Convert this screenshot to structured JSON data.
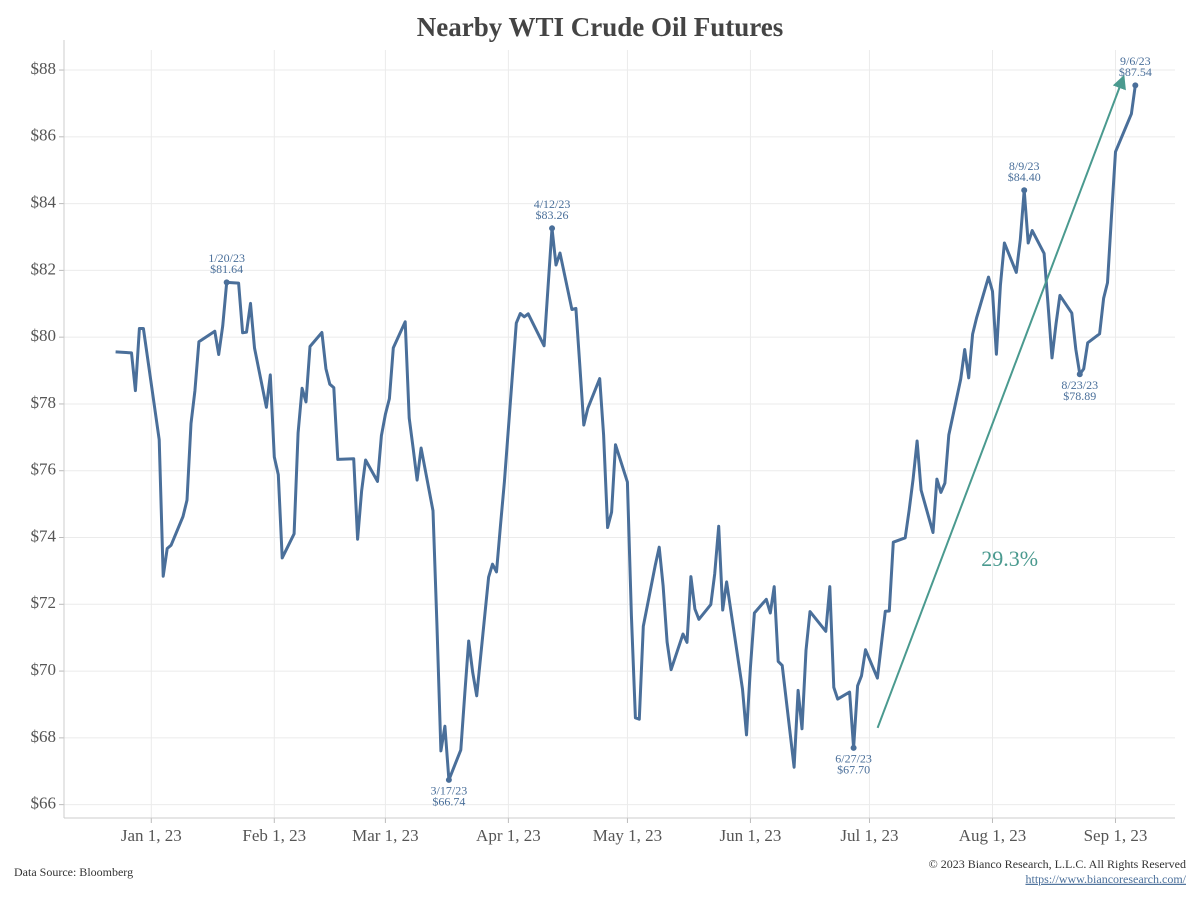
{
  "chart_data": {
    "type": "line",
    "title": "Nearby WTI Crude Oil Futures",
    "color": "#4a6f9a",
    "x": [
      "2022-12-23",
      "2022-12-27",
      "2022-12-28",
      "2022-12-29",
      "2022-12-30",
      "2023-01-03",
      "2023-01-04",
      "2023-01-05",
      "2023-01-06",
      "2023-01-09",
      "2023-01-10",
      "2023-01-11",
      "2023-01-12",
      "2023-01-13",
      "2023-01-17",
      "2023-01-18",
      "2023-01-19",
      "2023-01-20",
      "2023-01-23",
      "2023-01-24",
      "2023-01-25",
      "2023-01-26",
      "2023-01-27",
      "2023-01-30",
      "2023-01-31",
      "2023-02-01",
      "2023-02-02",
      "2023-02-03",
      "2023-02-06",
      "2023-02-07",
      "2023-02-08",
      "2023-02-09",
      "2023-02-10",
      "2023-02-13",
      "2023-02-14",
      "2023-02-15",
      "2023-02-16",
      "2023-02-17",
      "2023-02-21",
      "2023-02-22",
      "2023-02-23",
      "2023-02-24",
      "2023-02-27",
      "2023-02-28",
      "2023-03-01",
      "2023-03-02",
      "2023-03-03",
      "2023-03-06",
      "2023-03-07",
      "2023-03-08",
      "2023-03-09",
      "2023-03-10",
      "2023-03-13",
      "2023-03-14",
      "2023-03-15",
      "2023-03-16",
      "2023-03-17",
      "2023-03-20",
      "2023-03-21",
      "2023-03-22",
      "2023-03-23",
      "2023-03-24",
      "2023-03-27",
      "2023-03-28",
      "2023-03-29",
      "2023-03-30",
      "2023-03-31",
      "2023-04-03",
      "2023-04-04",
      "2023-04-05",
      "2023-04-06",
      "2023-04-10",
      "2023-04-11",
      "2023-04-12",
      "2023-04-13",
      "2023-04-14",
      "2023-04-17",
      "2023-04-18",
      "2023-04-19",
      "2023-04-20",
      "2023-04-21",
      "2023-04-24",
      "2023-04-25",
      "2023-04-26",
      "2023-04-27",
      "2023-04-28",
      "2023-05-01",
      "2023-05-02",
      "2023-05-03",
      "2023-05-04",
      "2023-05-05",
      "2023-05-08",
      "2023-05-09",
      "2023-05-10",
      "2023-05-11",
      "2023-05-12",
      "2023-05-15",
      "2023-05-16",
      "2023-05-17",
      "2023-05-18",
      "2023-05-19",
      "2023-05-22",
      "2023-05-23",
      "2023-05-24",
      "2023-05-25",
      "2023-05-26",
      "2023-05-30",
      "2023-05-31",
      "2023-06-01",
      "2023-06-02",
      "2023-06-05",
      "2023-06-06",
      "2023-06-07",
      "2023-06-08",
      "2023-06-09",
      "2023-06-12",
      "2023-06-13",
      "2023-06-14",
      "2023-06-15",
      "2023-06-16",
      "2023-06-20",
      "2023-06-21",
      "2023-06-22",
      "2023-06-23",
      "2023-06-26",
      "2023-06-27",
      "2023-06-28",
      "2023-06-29",
      "2023-06-30",
      "2023-07-03",
      "2023-07-05",
      "2023-07-06",
      "2023-07-07",
      "2023-07-10",
      "2023-07-11",
      "2023-07-12",
      "2023-07-13",
      "2023-07-14",
      "2023-07-17",
      "2023-07-18",
      "2023-07-19",
      "2023-07-20",
      "2023-07-21",
      "2023-07-24",
      "2023-07-25",
      "2023-07-26",
      "2023-07-27",
      "2023-07-28",
      "2023-07-31",
      "2023-08-01",
      "2023-08-02",
      "2023-08-03",
      "2023-08-04",
      "2023-08-07",
      "2023-08-08",
      "2023-08-09",
      "2023-08-10",
      "2023-08-11",
      "2023-08-14",
      "2023-08-15",
      "2023-08-16",
      "2023-08-17",
      "2023-08-18",
      "2023-08-21",
      "2023-08-22",
      "2023-08-23",
      "2023-08-24",
      "2023-08-25",
      "2023-08-28",
      "2023-08-29",
      "2023-08-30",
      "2023-08-31",
      "2023-09-01",
      "2023-09-05",
      "2023-09-06"
    ],
    "values": [
      79.56,
      79.53,
      78.4,
      80.26,
      80.26,
      76.93,
      72.84,
      73.67,
      73.77,
      74.63,
      75.12,
      77.41,
      78.39,
      79.86,
      80.18,
      79.48,
      80.33,
      81.64,
      81.62,
      80.13,
      80.15,
      81.01,
      79.68,
      77.9,
      78.87,
      76.41,
      75.88,
      73.39,
      74.11,
      77.14,
      78.47,
      78.06,
      79.72,
      80.14,
      79.06,
      78.59,
      78.49,
      76.34,
      76.36,
      73.95,
      75.39,
      76.32,
      75.68,
      77.05,
      77.69,
      78.16,
      79.68,
      80.46,
      77.58,
      76.66,
      75.72,
      76.68,
      74.8,
      71.33,
      67.61,
      68.35,
      66.74,
      67.64,
      69.33,
      70.9,
      69.96,
      69.26,
      72.81,
      73.2,
      72.97,
      74.37,
      75.67,
      80.42,
      80.71,
      80.61,
      80.7,
      79.74,
      81.53,
      83.26,
      82.16,
      82.52,
      80.83,
      80.86,
      79.16,
      77.37,
      77.87,
      78.76,
      77.07,
      74.3,
      74.76,
      76.78,
      75.66,
      71.66,
      68.6,
      68.56,
      71.34,
      73.16,
      73.71,
      72.56,
      70.87,
      70.04,
      71.11,
      70.86,
      72.83,
      71.86,
      71.55,
      71.99,
      72.91,
      74.34,
      71.83,
      72.67,
      69.46,
      68.09,
      70.1,
      71.74,
      72.15,
      71.74,
      72.53,
      70.29,
      70.17,
      67.12,
      69.42,
      68.27,
      70.62,
      71.78,
      71.19,
      72.53,
      69.51,
      69.16,
      69.37,
      67.7,
      69.56,
      69.86,
      70.64,
      69.79,
      71.79,
      71.8,
      73.86,
      73.99,
      74.83,
      75.75,
      76.89,
      75.42,
      74.15,
      75.75,
      75.35,
      75.63,
      77.07,
      78.74,
      79.63,
      78.78,
      80.09,
      80.58,
      81.8,
      81.37,
      79.49,
      81.55,
      82.82,
      81.94,
      82.92,
      84.4,
      82.82,
      83.19,
      82.51,
      80.99,
      79.38,
      80.39,
      81.25,
      80.72,
      79.64,
      78.89,
      79.05,
      79.83,
      80.1,
      81.16,
      81.63,
      83.63,
      85.55,
      86.69,
      87.54
    ],
    "xlim": [
      "2022-12-10",
      "2023-09-16"
    ],
    "xticks": [
      {
        "value": "2023-01-01",
        "label": "Jan 1, 23"
      },
      {
        "value": "2023-02-01",
        "label": "Feb 1, 23"
      },
      {
        "value": "2023-03-01",
        "label": "Mar 1, 23"
      },
      {
        "value": "2023-04-01",
        "label": "Apr 1, 23"
      },
      {
        "value": "2023-05-01",
        "label": "May 1, 23"
      },
      {
        "value": "2023-06-01",
        "label": "Jun 1, 23"
      },
      {
        "value": "2023-07-01",
        "label": "Jul 1, 23"
      },
      {
        "value": "2023-08-01",
        "label": "Aug 1, 23"
      },
      {
        "value": "2023-09-01",
        "label": "Sep 1, 23"
      }
    ],
    "ylim": [
      65.6,
      88.6
    ],
    "yticks": [
      {
        "value": 66,
        "label": "$66"
      },
      {
        "value": 68,
        "label": "$68"
      },
      {
        "value": 70,
        "label": "$70"
      },
      {
        "value": 72,
        "label": "$72"
      },
      {
        "value": 74,
        "label": "$74"
      },
      {
        "value": 76,
        "label": "$76"
      },
      {
        "value": 78,
        "label": "$78"
      },
      {
        "value": 80,
        "label": "$80"
      },
      {
        "value": 82,
        "label": "$82"
      },
      {
        "value": 84,
        "label": "$84"
      },
      {
        "value": 86,
        "label": "$86"
      },
      {
        "value": 88,
        "label": "$88"
      }
    ],
    "grid": true,
    "annotations": [
      {
        "x": "2023-01-20",
        "label": "1/20/23",
        "value": 81.64,
        "value_label": "$81.64"
      },
      {
        "x": "2023-03-17",
        "label": "3/17/23",
        "value": 66.74,
        "value_label": "$66.74"
      },
      {
        "x": "2023-04-12",
        "label": "4/12/23",
        "value": 83.26,
        "value_label": "$83.26"
      },
      {
        "x": "2023-06-27",
        "label": "6/27/23",
        "value": 67.7,
        "value_label": "$67.70"
      },
      {
        "x": "2023-08-09",
        "label": "8/9/23",
        "value": 84.4,
        "value_label": "$84.40"
      },
      {
        "x": "2023-08-23",
        "label": "8/23/23",
        "value": 78.89,
        "value_label": "$78.89"
      },
      {
        "x": "2023-09-06",
        "label": "9/6/23",
        "value": 87.54,
        "value_label": "$87.54"
      }
    ],
    "change_label": "29.3%",
    "change_color": "#4a9a8f",
    "source": "Data Source: Bloomberg",
    "copyright": "© 2023 Bianco Research, L.L.C. All Rights Reserved",
    "url": "https://www.biancoresearch.com/"
  }
}
